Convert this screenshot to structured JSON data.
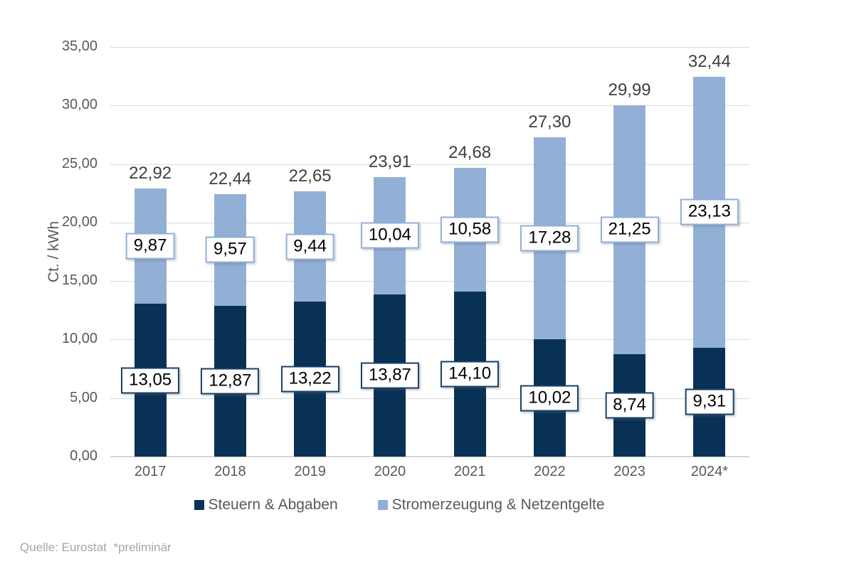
{
  "chart": {
    "source_note": "Quelle: Eurostat  *preliminär"
  },
  "chart_data": {
    "type": "bar",
    "stacked": true,
    "title": "",
    "xlabel": "",
    "ylabel": "Ct. / kWh",
    "ylim": [
      0,
      35
    ],
    "ytick_step": 5,
    "ytick_labels": [
      "0,00",
      "5,00",
      "10,00",
      "15,00",
      "20,00",
      "25,00",
      "30,00",
      "35,00"
    ],
    "grid": true,
    "gridline_color": "#d9d9d9",
    "legend_position": "bottom",
    "categories": [
      "2017",
      "2018",
      "2019",
      "2020",
      "2021",
      "2022",
      "2023",
      "2024*"
    ],
    "series": [
      {
        "id": "steuern-abgaben",
        "name": "Steuern & Abgaben",
        "color": "#093155",
        "box_border_color": "#17406a",
        "values": [
          13.05,
          12.87,
          13.22,
          13.87,
          14.1,
          10.02,
          8.74,
          9.31
        ],
        "value_labels": [
          "13,05",
          "12,87",
          "13,22",
          "13,87",
          "14,10",
          "10,02",
          "8,74",
          "9,31"
        ]
      },
      {
        "id": "stromerzeugung-netzentgelte",
        "name": "Stromerzeugung & Netzentgelte",
        "color": "#92b0d6",
        "box_border_color": "#8fb0db",
        "values": [
          9.87,
          9.57,
          9.44,
          10.04,
          10.58,
          17.28,
          21.25,
          23.13
        ],
        "value_labels": [
          "9,87",
          "9,57",
          "9,44",
          "10,04",
          "10,58",
          "17,28",
          "21,25",
          "23,13"
        ]
      }
    ],
    "totals": [
      22.92,
      22.44,
      22.65,
      23.91,
      24.68,
      27.3,
      29.99,
      32.44
    ],
    "total_labels": [
      "22,92",
      "22,44",
      "22,65",
      "23,91",
      "24,68",
      "27,30",
      "29,99",
      "32,44"
    ]
  }
}
